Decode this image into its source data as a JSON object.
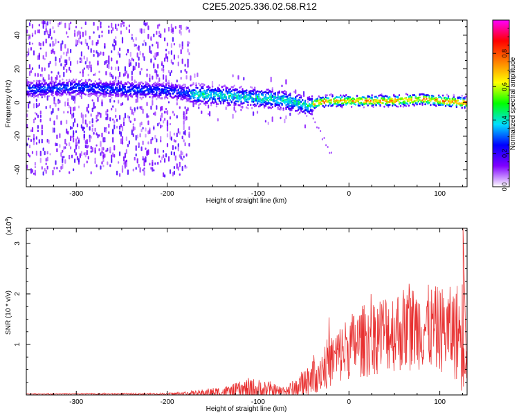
{
  "figure": {
    "title": "C2E5.2025.336.02.58.R12"
  },
  "chart_data": [
    {
      "type": "heatmap",
      "xlabel": "Height of straight line (km)",
      "ylabel": "Frequency (Hz)",
      "xlim": [
        -355,
        130
      ],
      "ylim": [
        -50,
        49
      ],
      "xticks": [
        -300,
        -200,
        -100,
        0,
        100
      ],
      "yticks": [
        -40,
        -20,
        0,
        20,
        40
      ],
      "grid": false,
      "ridge": {
        "x": [
          -345,
          -300,
          -260,
          -200,
          -170,
          -140,
          -110,
          -80,
          -60,
          -45,
          -35,
          -20,
          0,
          50,
          80,
          100,
          125
        ],
        "frequency": [
          8,
          9,
          8,
          7,
          5,
          4,
          3,
          2,
          0,
          -2,
          0,
          1,
          1,
          1,
          2,
          1,
          0
        ]
      },
      "colorbar": {
        "label": "Normalized spectral amplitude",
        "range": [
          0,
          1
        ],
        "ticks": [
          0.0,
          0.2,
          0.4,
          0.6,
          0.8
        ],
        "colors": [
          "#ffffff",
          "#8000ff",
          "#0000ff",
          "#00e0ff",
          "#00ff00",
          "#ffff00",
          "#ff8000",
          "#ff0000",
          "#ff00ff"
        ]
      }
    },
    {
      "type": "line",
      "xlabel": "Height of straight line (km)",
      "ylabel": "SNR (10 * v/v)",
      "y_multiplier": "(x10",
      "y_multiplier_exp": "4",
      "y_multiplier_close": ")",
      "xlim": [
        -355,
        130
      ],
      "ylim": [
        0,
        3.3
      ],
      "xticks": [
        -300,
        -200,
        -100,
        0,
        100
      ],
      "yticks": [
        1,
        2,
        3
      ],
      "color": "#e83030",
      "envelope": {
        "x": [
          -355,
          -200,
          -170,
          -130,
          -110,
          -90,
          -75,
          -60,
          -50,
          -40,
          -25,
          -10,
          0,
          20,
          40,
          60,
          80,
          100,
          115,
          125,
          130
        ],
        "base": [
          0.02,
          0.02,
          0.03,
          0.06,
          0.09,
          0.08,
          0.07,
          0.12,
          0.22,
          0.4,
          0.6,
          0.8,
          0.95,
          1.1,
          1.25,
          1.3,
          1.35,
          1.3,
          1.25,
          1.2,
          1.15
        ],
        "amp": [
          0.01,
          0.02,
          0.06,
          0.14,
          0.25,
          0.22,
          0.1,
          0.18,
          0.3,
          0.4,
          0.5,
          0.6,
          0.65,
          0.75,
          0.8,
          0.85,
          0.85,
          0.85,
          0.9,
          1.2,
          1.0
        ]
      }
    }
  ]
}
